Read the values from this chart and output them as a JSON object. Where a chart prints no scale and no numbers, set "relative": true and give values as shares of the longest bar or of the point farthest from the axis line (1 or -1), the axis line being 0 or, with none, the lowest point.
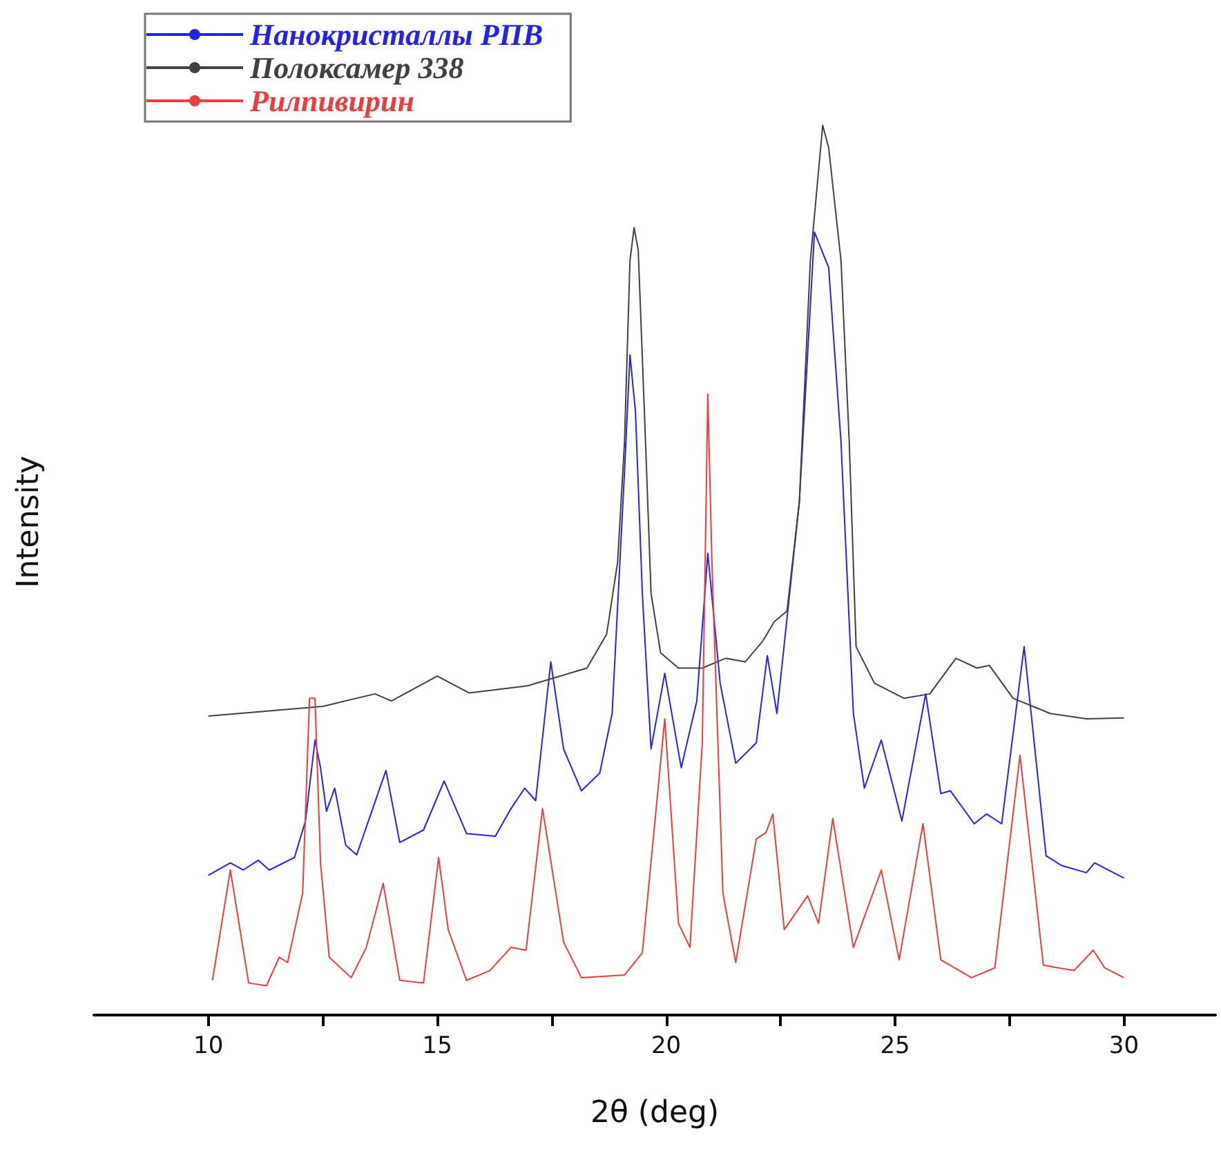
{
  "chart_data": {
    "type": "line",
    "xlabel": "2θ (deg)",
    "ylabel": "Intensity",
    "relative": true,
    "legend": "top left",
    "marker": "none",
    "line_style": "solid",
    "grid": false,
    "xlim": [
      7.5,
      32
    ],
    "xticks": [
      10,
      {
        "value": 12.5,
        "label": null
      },
      15,
      {
        "value": 17.5,
        "label": null
      },
      20,
      {
        "value": 22.5,
        "label": null
      },
      25,
      {
        "value": 27.5,
        "label": null
      },
      30
    ],
    "series": [
      {
        "name": "Нанокристаллы РПВ",
        "color": "#2222ee",
        "x": [
          10,
          10.48,
          10.76,
          11.09,
          11.33,
          11.88,
          12.12,
          12.33,
          12.45,
          12.58,
          12.76,
          13,
          13.24,
          13.88,
          14.18,
          14.7,
          15.15,
          15.64,
          16.27,
          16.61,
          16.91,
          17.15,
          17.48,
          17.76,
          18.15,
          18.55,
          18.82,
          19.09,
          19.21,
          19.33,
          19.48,
          19.67,
          19.97,
          20.33,
          20.67,
          20.91,
          21.18,
          21.52,
          21.97,
          22.21,
          22.42,
          22.91,
          23.24,
          23.55,
          23.82,
          24.09,
          24.33,
          24.7,
          25.15,
          25.67,
          26,
          26.21,
          26.73,
          27,
          27.33,
          27.82,
          28.3,
          28.64,
          29.18,
          29.36,
          30
        ],
        "values": [
          0.157,
          0.171,
          0.163,
          0.174,
          0.163,
          0.177,
          0.218,
          0.309,
          0.278,
          0.229,
          0.255,
          0.191,
          0.18,
          0.275,
          0.194,
          0.208,
          0.263,
          0.204,
          0.201,
          0.232,
          0.255,
          0.241,
          0.397,
          0.299,
          0.252,
          0.272,
          0.339,
          0.61,
          0.742,
          0.678,
          0.474,
          0.299,
          0.384,
          0.278,
          0.353,
          0.519,
          0.373,
          0.283,
          0.306,
          0.404,
          0.339,
          0.577,
          0.88,
          0.84,
          0.644,
          0.339,
          0.255,
          0.309,
          0.218,
          0.361,
          0.249,
          0.252,
          0.215,
          0.226,
          0.215,
          0.414,
          0.179,
          0.168,
          0.16,
          0.171,
          0.154
        ]
      },
      {
        "name": "Полоксамер 338",
        "color": "#404040",
        "x": [
          10,
          12.5,
          13.64,
          14,
          15,
          15.7,
          16.97,
          18.27,
          18.7,
          18.94,
          19.09,
          19.21,
          19.3,
          19.39,
          19.55,
          19.67,
          19.88,
          20.27,
          20.79,
          21.3,
          21.73,
          22.12,
          22.36,
          22.64,
          22.91,
          23.15,
          23.42,
          23.55,
          23.82,
          24,
          24.15,
          24.55,
          25.2,
          25.76,
          26.33,
          26.79,
          27.06,
          27.58,
          28.39,
          29.18,
          30
        ],
        "values": [
          0.336,
          0.347,
          0.361,
          0.353,
          0.381,
          0.362,
          0.37,
          0.39,
          0.428,
          0.509,
          0.644,
          0.848,
          0.885,
          0.86,
          0.644,
          0.474,
          0.407,
          0.39,
          0.39,
          0.401,
          0.397,
          0.421,
          0.442,
          0.454,
          0.577,
          0.848,
          1,
          0.975,
          0.848,
          0.644,
          0.414,
          0.373,
          0.356,
          0.361,
          0.401,
          0.39,
          0.393,
          0.356,
          0.339,
          0.333,
          0.334
        ]
      },
      {
        "name": "Рилпивирин",
        "color": "#ee3b3b",
        "x": [
          10.09,
          10.48,
          10.88,
          11.27,
          11.55,
          11.73,
          12.06,
          12.21,
          12.33,
          12.45,
          12.64,
          13.12,
          13.45,
          13.82,
          14.18,
          14.7,
          15.03,
          15.24,
          15.64,
          16.15,
          16.61,
          16.94,
          17.3,
          17.76,
          18.15,
          19.09,
          19.48,
          19.97,
          20.27,
          20.52,
          20.79,
          20.91,
          21,
          21.24,
          21.52,
          21.97,
          22.18,
          22.33,
          22.58,
          23.09,
          23.33,
          23.64,
          24.09,
          24.7,
          25.09,
          25.61,
          26,
          26.67,
          27.18,
          27.73,
          28.24,
          28.91,
          29.33,
          29.58,
          30
        ],
        "values": [
          0.039,
          0.163,
          0.036,
          0.033,
          0.065,
          0.059,
          0.137,
          0.356,
          0.356,
          0.171,
          0.065,
          0.042,
          0.076,
          0.148,
          0.039,
          0.036,
          0.177,
          0.096,
          0.039,
          0.05,
          0.076,
          0.073,
          0.232,
          0.082,
          0.042,
          0.045,
          0.07,
          0.333,
          0.103,
          0.076,
          0.306,
          0.698,
          0.509,
          0.137,
          0.059,
          0.198,
          0.205,
          0.226,
          0.096,
          0.134,
          0.103,
          0.221,
          0.076,
          0.163,
          0.062,
          0.215,
          0.062,
          0.042,
          0.053,
          0.292,
          0.056,
          0.05,
          0.073,
          0.053,
          0.042
        ]
      }
    ]
  }
}
